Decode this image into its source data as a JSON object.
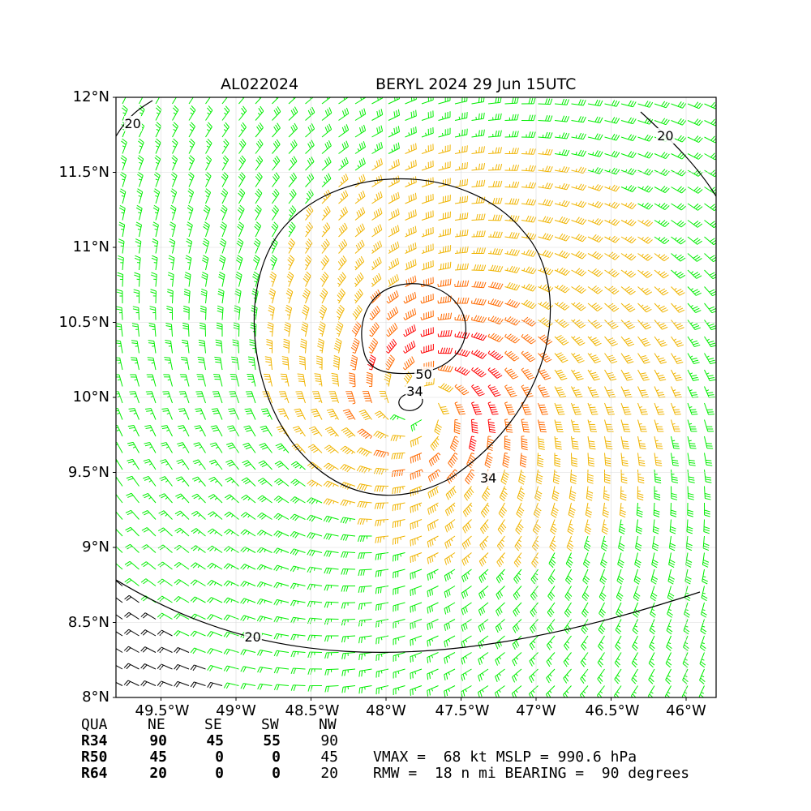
{
  "header": {
    "storm_id": "AL022024",
    "storm_title": "BERYL 2024 29 Jun 15UTC"
  },
  "map": {
    "lon_range": [
      -49.8,
      -45.8
    ],
    "lat_range": [
      8.0,
      12.0
    ],
    "lon_ticks": [
      {
        "value": -49.5,
        "label": "49.5°W"
      },
      {
        "value": -49.0,
        "label": "49°W"
      },
      {
        "value": -48.5,
        "label": "48.5°W"
      },
      {
        "value": -48.0,
        "label": "48°W"
      },
      {
        "value": -47.5,
        "label": "47.5°W"
      },
      {
        "value": -47.0,
        "label": "47°W"
      },
      {
        "value": -46.5,
        "label": "46.5°W"
      },
      {
        "value": -46.0,
        "label": "46°W"
      }
    ],
    "lat_ticks": [
      {
        "value": 8.0,
        "label": "8°N"
      },
      {
        "value": 8.5,
        "label": "8.5°N"
      },
      {
        "value": 9.0,
        "label": "9°N"
      },
      {
        "value": 9.5,
        "label": "9.5°N"
      },
      {
        "value": 10.0,
        "label": "10°N"
      },
      {
        "value": 10.5,
        "label": "10.5°N"
      },
      {
        "value": 11.0,
        "label": "11°N"
      },
      {
        "value": 11.5,
        "label": "11.5°N"
      },
      {
        "value": 12.0,
        "label": "12°N"
      }
    ],
    "grid": true,
    "storm_center": {
      "lon": -47.78,
      "lat": 9.95
    },
    "wind_field": {
      "vmax_kt": 68,
      "rmw_nmi": 18,
      "color_bands": [
        {
          "min_kt": 0,
          "max_kt": 20,
          "color": "#000000"
        },
        {
          "min_kt": 20,
          "max_kt": 34,
          "color": "#00ee00"
        },
        {
          "min_kt": 34,
          "max_kt": 50,
          "color": "#f0b400"
        },
        {
          "min_kt": 50,
          "max_kt": 64,
          "color": "#ff6a00"
        },
        {
          "min_kt": 64,
          "max_kt": 999,
          "color": "#ff0000"
        }
      ]
    },
    "contour_labels": [
      {
        "text": "20",
        "lon": -49.7,
        "lat": 11.82
      },
      {
        "text": "20",
        "lon": -46.15,
        "lat": 11.74
      },
      {
        "text": "20",
        "lon": -48.9,
        "lat": 8.4
      },
      {
        "text": "34",
        "lon": -47.82,
        "lat": 10.04
      },
      {
        "text": "34",
        "lon": -47.33,
        "lat": 9.46
      },
      {
        "text": "50",
        "lon": -47.76,
        "lat": 10.15
      }
    ]
  },
  "table": {
    "header": [
      "QUA",
      "NE",
      "SE",
      "SW",
      "NW"
    ],
    "rows": [
      {
        "label": "R34",
        "values": [
          "90",
          "45",
          "55",
          "90"
        ]
      },
      {
        "label": "R50",
        "values": [
          "45",
          "0",
          "0",
          "45"
        ]
      },
      {
        "label": "R64",
        "values": [
          "20",
          "0",
          "0",
          "20"
        ]
      }
    ]
  },
  "stats": {
    "line1": "VMAX =  68 kt MSLP = 990.6 hPa",
    "line2": "RMW =  18 n mi BEARING =  90 degrees"
  }
}
